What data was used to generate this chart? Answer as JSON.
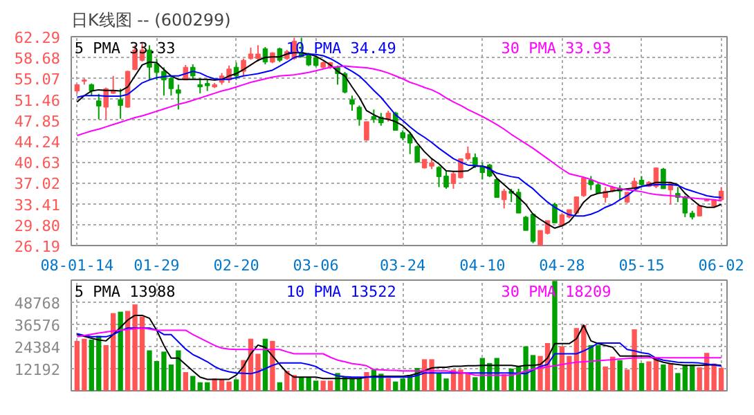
{
  "chart_data": [
    {
      "type": "candlestick",
      "title": "日K线图 -- (600299)",
      "categories": [
        "08-01-14",
        null,
        null,
        null,
        null,
        null,
        null,
        null,
        null,
        null,
        null,
        "01-29",
        null,
        null,
        null,
        null,
        null,
        null,
        null,
        null,
        null,
        null,
        "02-20",
        null,
        null,
        null,
        null,
        null,
        null,
        null,
        null,
        null,
        null,
        "03-06",
        null,
        null,
        null,
        null,
        null,
        null,
        null,
        null,
        null,
        null,
        null,
        "03-24",
        null,
        null,
        null,
        null,
        null,
        null,
        null,
        null,
        null,
        null,
        "04-10",
        null,
        null,
        null,
        null,
        null,
        null,
        null,
        null,
        null,
        null,
        "04-28",
        null,
        null,
        null,
        null,
        null,
        null,
        null,
        null,
        null,
        null,
        "05-15",
        null,
        null,
        null,
        null,
        null,
        null,
        null,
        null,
        null,
        null,
        "06-02"
      ],
      "ohlc": [
        [
          52.9,
          54.1,
          52.5,
          54.0
        ],
        [
          54.6,
          55.0,
          54.0,
          54.8
        ],
        [
          54.0,
          54.2,
          52.1,
          52.9
        ],
        [
          51.2,
          52.4,
          48.0,
          50.3
        ],
        [
          50.1,
          53.5,
          48.0,
          53.3
        ],
        [
          52.5,
          55.5,
          52.4,
          53.0
        ],
        [
          51.4,
          53.3,
          48.1,
          50.4
        ],
        [
          50.1,
          56.4,
          50.0,
          56.3
        ],
        [
          56.6,
          60.8,
          56.5,
          60.0
        ],
        [
          58.2,
          61.2,
          58.0,
          60.0
        ],
        [
          60.0,
          60.8,
          54.8,
          57.0
        ],
        [
          57.6,
          58.5,
          54.8,
          56.1
        ],
        [
          56.3,
          57.0,
          52.1,
          54.8
        ],
        [
          55.1,
          55.5,
          52.1,
          53.3
        ],
        [
          53.1,
          54.0,
          49.7,
          52.5
        ],
        [
          54.8,
          57.4,
          54.8,
          57.0
        ],
        [
          57.0,
          57.5,
          55.0,
          55.5
        ],
        [
          54.0,
          55.1,
          52.5,
          53.6
        ],
        [
          54.2,
          54.9,
          52.9,
          53.8
        ],
        [
          53.6,
          54.3,
          53.4,
          54.0
        ],
        [
          54.4,
          56.0,
          54.0,
          55.5
        ],
        [
          54.8,
          57.3,
          54.3,
          56.7
        ],
        [
          57.0,
          57.8,
          54.8,
          55.5
        ],
        [
          56.3,
          58.5,
          55.5,
          58.2
        ],
        [
          58.5,
          60.4,
          58.3,
          59.3
        ],
        [
          58.5,
          60.8,
          58.0,
          59.3
        ],
        [
          60.2,
          60.5,
          57.5,
          57.9
        ],
        [
          57.9,
          59.6,
          57.7,
          59.5
        ],
        [
          60.2,
          60.4,
          57.9,
          58.2
        ],
        [
          58.5,
          60.0,
          58.3,
          59.7
        ],
        [
          58.5,
          62.1,
          58.3,
          61.5
        ],
        [
          59.6,
          62.1,
          58.7,
          58.8
        ],
        [
          59.3,
          59.5,
          57.2,
          57.4
        ],
        [
          58.7,
          58.9,
          57.1,
          57.3
        ],
        [
          57.0,
          58.0,
          56.8,
          57.8
        ],
        [
          57.0,
          57.9,
          56.7,
          57.8
        ],
        [
          57.0,
          57.3,
          54.0,
          55.9
        ],
        [
          55.9,
          56.2,
          52.5,
          52.7
        ],
        [
          51.4,
          52.1,
          49.5,
          50.6
        ],
        [
          50.1,
          50.4,
          46.9,
          48.0
        ],
        [
          44.4,
          47.6,
          44.3,
          47.6
        ],
        [
          48.5,
          49.7,
          47.4,
          48.0
        ],
        [
          48.4,
          49.1,
          46.9,
          47.4
        ],
        [
          48.0,
          49.5,
          47.6,
          49.1
        ],
        [
          49.1,
          49.3,
          46.1,
          46.1
        ],
        [
          45.7,
          46.1,
          44.4,
          44.8
        ],
        [
          45.4,
          45.8,
          42.0,
          43.9
        ],
        [
          43.3,
          43.5,
          40.6,
          40.6
        ],
        [
          39.6,
          41.1,
          39.5,
          41.1
        ],
        [
          39.9,
          41.2,
          39.4,
          40.5
        ],
        [
          39.7,
          39.9,
          36.3,
          38.1
        ],
        [
          38.2,
          39.0,
          36.0,
          36.3
        ],
        [
          36.9,
          39.0,
          36.0,
          38.6
        ],
        [
          37.9,
          41.2,
          37.8,
          41.2
        ],
        [
          41.2,
          43.3,
          40.9,
          42.1
        ],
        [
          41.4,
          42.1,
          39.6,
          39.9
        ],
        [
          39.9,
          40.5,
          37.6,
          38.8
        ],
        [
          40.1,
          40.3,
          38.0,
          38.2
        ],
        [
          37.6,
          37.8,
          34.5,
          34.5
        ],
        [
          34.1,
          36.0,
          32.6,
          35.6
        ],
        [
          35.6,
          36.0,
          33.7,
          35.2
        ],
        [
          35.4,
          36.0,
          31.8,
          31.8
        ],
        [
          31.1,
          31.3,
          28.8,
          28.8
        ],
        [
          31.6,
          31.8,
          26.6,
          26.9
        ],
        [
          26.2,
          28.8,
          26.2,
          28.8
        ],
        [
          28.3,
          30.5,
          28.1,
          30.5
        ],
        [
          33.3,
          33.6,
          30.1,
          30.1
        ],
        [
          29.6,
          31.8,
          29.5,
          31.5
        ],
        [
          31.1,
          32.4,
          30.9,
          32.4
        ],
        [
          31.8,
          34.6,
          31.6,
          34.6
        ],
        [
          34.8,
          37.9,
          34.6,
          37.9
        ],
        [
          37.5,
          38.2,
          35.8,
          36.7
        ],
        [
          36.7,
          36.9,
          35.2,
          35.2
        ],
        [
          34.5,
          36.3,
          33.6,
          35.6
        ],
        [
          35.6,
          36.5,
          35.4,
          36.3
        ],
        [
          36.1,
          36.6,
          34.1,
          35.6
        ],
        [
          33.7,
          35.4,
          33.5,
          35.4
        ],
        [
          36.1,
          37.9,
          36.0,
          37.3
        ],
        [
          37.5,
          38.2,
          36.6,
          36.7
        ],
        [
          36.4,
          37.3,
          36.3,
          37.1
        ],
        [
          36.4,
          39.7,
          36.1,
          39.6
        ],
        [
          39.4,
          39.6,
          36.0,
          36.0
        ],
        [
          35.8,
          37.0,
          33.3,
          36.9
        ],
        [
          35.2,
          36.3,
          33.7,
          34.5
        ],
        [
          34.6,
          34.8,
          31.1,
          31.8
        ],
        [
          31.8,
          32.2,
          30.7,
          31.1
        ],
        [
          31.3,
          33.1,
          31.2,
          33.1
        ],
        [
          33.9,
          34.2,
          33.8,
          34.1
        ],
        [
          33.0,
          34.2,
          32.9,
          34.1
        ],
        [
          34.1,
          36.3,
          34.0,
          35.6
        ]
      ],
      "colors": [
        "#ff5555",
        "#ff5555",
        "#00a000",
        "#00a000",
        "#ff5555",
        "#ff5555",
        "#00a000",
        "#ff5555",
        "#ff5555",
        "#ff5555",
        "#00a000",
        "#00a000",
        "#00a000",
        "#00a000",
        "#00a000",
        "#ff5555",
        "#00a000",
        "#00a000",
        "#00a000",
        "#ff5555",
        "#ff5555",
        "#ff5555",
        "#00a000",
        "#ff5555",
        "#ff5555",
        "#ff5555",
        "#00a000",
        "#ff5555",
        "#00a000",
        "#ff5555",
        "#ff5555",
        "#00a000",
        "#00a000",
        "#00a000",
        "#ff5555",
        "#ff5555",
        "#00a000",
        "#00a000",
        "#00a000",
        "#00a000",
        "#ff5555",
        "#00a000",
        "#00a000",
        "#ff5555",
        "#00a000",
        "#00a000",
        "#00a000",
        "#00a000",
        "#ff5555",
        "#ff5555",
        "#00a000",
        "#00a000",
        "#ff5555",
        "#ff5555",
        "#ff5555",
        "#00a000",
        "#00a000",
        "#00a000",
        "#00a000",
        "#ff5555",
        "#00a000",
        "#00a000",
        "#00a000",
        "#00a000",
        "#ff5555",
        "#ff5555",
        "#00a000",
        "#ff5555",
        "#ff5555",
        "#ff5555",
        "#ff5555",
        "#00a000",
        "#00a000",
        "#ff5555",
        "#ff5555",
        "#00a000",
        "#ff5555",
        "#ff5555",
        "#00a000",
        "#ff5555",
        "#ff5555",
        "#00a000",
        "#ff5555",
        "#00a000",
        "#00a000",
        "#00a000",
        "#ff5555",
        "#ff5555",
        "#ff5555",
        "#ff5555"
      ],
      "series": [
        {
          "type": "line",
          "name": "5 PMA 33.33",
          "color": "#000000",
          "values": [
            51.0,
            52.1,
            52.9,
            53.1,
            53.0,
            53.0,
            52.9,
            53.6,
            55.5,
            57.4,
            57.9,
            57.8,
            56.6,
            55.5,
            54.9,
            54.9,
            54.9,
            54.9,
            54.9,
            54.8,
            54.9,
            55.5,
            55.9,
            56.6,
            57.4,
            58.2,
            58.7,
            58.8,
            58.8,
            59.3,
            59.5,
            59.5,
            59.3,
            58.9,
            58.2,
            57.4,
            56.3,
            55.5,
            53.6,
            51.8,
            49.5,
            48.8,
            48.2,
            48.0,
            47.6,
            46.9,
            45.7,
            43.9,
            42.4,
            41.2,
            40.3,
            39.1,
            39.0,
            39.0,
            39.1,
            39.9,
            39.9,
            39.6,
            37.8,
            36.7,
            35.6,
            34.5,
            33.3,
            31.6,
            30.7,
            29.9,
            29.2,
            29.6,
            30.3,
            31.8,
            33.7,
            34.8,
            35.2,
            35.4,
            35.6,
            35.8,
            36.0,
            36.1,
            36.4,
            36.7,
            37.1,
            37.1,
            37.1,
            36.7,
            35.2,
            34.1,
            33.1,
            32.8,
            32.8,
            33.3
          ]
        },
        {
          "type": "line",
          "name": "10 PMA 34.49",
          "color": "#0000ff",
          "values": [
            51.8,
            52.1,
            52.1,
            52.1,
            52.0,
            52.0,
            52.0,
            52.3,
            53.3,
            54.3,
            54.8,
            55.2,
            55.4,
            55.5,
            55.5,
            55.9,
            56.3,
            56.0,
            55.4,
            55.0,
            54.9,
            54.9,
            55.2,
            55.5,
            55.7,
            55.9,
            56.2,
            56.5,
            57.2,
            57.9,
            58.7,
            59.0,
            59.3,
            59.2,
            59.0,
            58.5,
            57.8,
            57.0,
            56.3,
            55.5,
            54.3,
            53.0,
            51.8,
            50.3,
            48.8,
            47.8,
            46.7,
            45.7,
            44.9,
            44.0,
            43.0,
            42.1,
            41.2,
            40.6,
            40.1,
            40.0,
            39.9,
            39.4,
            38.7,
            38.4,
            38.1,
            37.9,
            36.9,
            36.0,
            34.8,
            33.7,
            32.8,
            32.1,
            31.5,
            31.3,
            31.3,
            31.6,
            32.1,
            32.8,
            33.3,
            34.1,
            34.8,
            35.8,
            36.4,
            36.6,
            36.7,
            36.7,
            36.7,
            36.6,
            36.0,
            35.6,
            35.2,
            34.8,
            34.6,
            34.5
          ]
        },
        {
          "type": "line",
          "name": "30 PMA 33.93",
          "color": "#ff00ff",
          "values": [
            45.2,
            45.6,
            46.0,
            46.3,
            46.7,
            47.1,
            47.5,
            47.9,
            48.3,
            48.6,
            49.0,
            49.4,
            49.8,
            50.2,
            50.6,
            50.9,
            51.3,
            51.7,
            52.1,
            52.5,
            52.9,
            53.2,
            53.6,
            54.0,
            54.4,
            54.7,
            55.0,
            55.3,
            55.5,
            55.6,
            55.7,
            55.9,
            56.1,
            56.4,
            56.7,
            57.0,
            57.1,
            57.2,
            57.1,
            57.0,
            56.9,
            56.7,
            56.4,
            56.0,
            55.5,
            55.0,
            54.4,
            54.0,
            53.5,
            53.1,
            52.5,
            51.7,
            51.0,
            50.4,
            49.7,
            49.1,
            48.5,
            47.8,
            47.1,
            46.3,
            45.4,
            44.6,
            43.8,
            43.0,
            42.1,
            41.2,
            40.3,
            39.4,
            38.6,
            38.3,
            38.0,
            37.6,
            37.1,
            36.7,
            36.3,
            36.0,
            35.8,
            35.7,
            35.5,
            35.2,
            35.0,
            34.9,
            34.8,
            34.7,
            34.5,
            34.4,
            34.3,
            34.2,
            34.1,
            33.9
          ]
        }
      ],
      "ylim": [
        26.19,
        62.29
      ],
      "yticks": [
        26.19,
        {
          "value": 29.8,
          "label": "29.80"
        },
        33.41,
        37.02,
        40.63,
        44.24,
        47.85,
        51.46,
        55.07,
        58.68,
        62.29
      ],
      "grid": true
    },
    {
      "type": "bar",
      "tick_labels": "y",
      "categories": [
        null,
        null,
        null,
        null,
        null,
        null,
        null,
        null,
        null,
        null,
        null,
        null,
        null,
        null,
        null,
        null,
        null,
        null,
        null,
        null,
        null,
        null,
        null,
        null,
        null,
        null,
        null,
        null,
        null,
        null,
        null,
        null,
        null,
        null,
        null,
        null,
        null,
        null,
        null,
        null,
        null,
        null,
        null,
        null,
        null,
        null,
        null,
        null,
        null,
        null,
        null,
        null,
        null,
        null,
        null,
        null,
        null,
        null,
        null,
        null,
        null,
        null,
        null,
        null,
        null,
        null,
        null,
        null,
        null,
        null,
        null,
        null,
        null,
        null,
        null,
        null,
        null,
        null,
        null,
        null,
        null,
        null,
        null,
        null,
        null,
        null,
        null,
        null,
        null,
        null
      ],
      "series": [
        {
          "type": "bar",
          "colors": [
            "#ff5555",
            "#ff5555",
            "#00a000",
            "#00a000",
            "#ff5555",
            "#ff5555",
            "#00a000",
            "#ff5555",
            "#ff5555",
            "#ff5555",
            "#00a000",
            "#00a000",
            "#00a000",
            "#00a000",
            "#00a000",
            "#ff5555",
            "#00a000",
            "#00a000",
            "#00a000",
            "#ff5555",
            "#ff5555",
            "#ff5555",
            "#00a000",
            "#ff5555",
            "#ff5555",
            "#ff5555",
            "#00a000",
            "#ff5555",
            "#00a000",
            "#ff5555",
            "#ff5555",
            "#00a000",
            "#00a000",
            "#00a000",
            "#ff5555",
            "#ff5555",
            "#00a000",
            "#00a000",
            "#00a000",
            "#00a000",
            "#ff5555",
            "#00a000",
            "#00a000",
            "#ff5555",
            "#00a000",
            "#00a000",
            "#00a000",
            "#00a000",
            "#ff5555",
            "#ff5555",
            "#00a000",
            "#00a000",
            "#ff5555",
            "#ff5555",
            "#ff5555",
            "#00a000",
            "#00a000",
            "#00a000",
            "#00a000",
            "#ff5555",
            "#00a000",
            "#00a000",
            "#00a000",
            "#00a000",
            "#ff5555",
            "#ff5555",
            "#00a000",
            "#ff5555",
            "#ff5555",
            "#ff5555",
            "#ff5555",
            "#00a000",
            "#00a000",
            "#ff5555",
            "#ff5555",
            "#00a000",
            "#ff5555",
            "#ff5555",
            "#00a000",
            "#ff5555",
            "#ff5555",
            "#00a000",
            "#ff5555",
            "#00a000",
            "#00a000",
            "#00a000",
            "#ff5555",
            "#ff5555",
            "#ff5555",
            "#ff5555"
          ],
          "values": [
            27500,
            28700,
            28200,
            30300,
            25200,
            42800,
            43600,
            44000,
            47600,
            41000,
            22300,
            16400,
            21600,
            14500,
            22300,
            10300,
            8200,
            4700,
            4700,
            6800,
            6300,
            5100,
            6300,
            16900,
            28700,
            20400,
            28700,
            27500,
            4700,
            11000,
            8700,
            7500,
            7500,
            5600,
            5600,
            5600,
            9800,
            7900,
            6800,
            6800,
            10300,
            11700,
            9400,
            7000,
            5100,
            6800,
            8700,
            12600,
            17400,
            17400,
            9800,
            6800,
            11700,
            11700,
            9800,
            7500,
            18100,
            15300,
            18100,
            9100,
            12200,
            13400,
            24500,
            19700,
            19200,
            26300,
            60500,
            24500,
            19200,
            34600,
            36200,
            25200,
            25200,
            13400,
            18800,
            16900,
            11700,
            33900,
            15300,
            16200,
            18600,
            14500,
            15000,
            9800,
            14500,
            14500,
            12900,
            20900,
            15000,
            12700
          ]
        },
        {
          "type": "line",
          "name": "5 PMA 13988",
          "color": "#000000",
          "values": [
            31000,
            30000,
            29000,
            28000,
            27500,
            31000,
            35000,
            39000,
            41600,
            41600,
            40000,
            33400,
            25000,
            18000,
            18000,
            14500,
            11000,
            7500,
            6300,
            6300,
            6300,
            6300,
            8600,
            13400,
            20400,
            25200,
            24000,
            19200,
            14500,
            10000,
            7500,
            7500,
            7500,
            7500,
            6800,
            6800,
            6800,
            6800,
            6800,
            6800,
            7500,
            8000,
            8000,
            8000,
            8000,
            8000,
            8500,
            9500,
            11000,
            12600,
            13000,
            13000,
            13500,
            13500,
            13800,
            13800,
            14000,
            14000,
            14000,
            14000,
            14000,
            13400,
            14000,
            14000,
            14500,
            18000,
            26000,
            26000,
            26000,
            28700,
            36200,
            27500,
            26000,
            25000,
            24000,
            19200,
            19200,
            19200,
            19200,
            19200,
            17000,
            15700,
            15000,
            14500,
            14000,
            14000,
            14000,
            14200,
            14400,
            14000
          ]
        },
        {
          "type": "line",
          "name": "10 PMA 13522",
          "color": "#0000ff",
          "values": [
            31500,
            30500,
            29800,
            29800,
            29800,
            31000,
            33000,
            34600,
            34600,
            34600,
            34600,
            33400,
            31000,
            31000,
            27000,
            23000,
            20000,
            18100,
            16000,
            13400,
            11500,
            10500,
            9800,
            9600,
            9400,
            10500,
            12200,
            14000,
            15300,
            15300,
            15300,
            15300,
            14500,
            13400,
            11000,
            9500,
            8200,
            7800,
            7500,
            7500,
            7500,
            7500,
            7500,
            7500,
            7500,
            7500,
            7500,
            8500,
            9800,
            9800,
            9800,
            9800,
            9800,
            9800,
            9800,
            9800,
            9800,
            9800,
            9800,
            9800,
            9800,
            9600,
            9400,
            11500,
            13400,
            14500,
            20400,
            20400,
            20400,
            20400,
            22000,
            24000,
            26300,
            26300,
            26300,
            26300,
            22800,
            22000,
            21000,
            20400,
            18000,
            16900,
            16300,
            15700,
            15500,
            15500,
            15300,
            14800,
            14200,
            13600
          ]
        },
        {
          "type": "line",
          "name": "30 PMA 18209",
          "color": "#ff00ff",
          "values": [
            29800,
            30500,
            31200,
            31800,
            32400,
            33000,
            33400,
            33800,
            34200,
            34600,
            34000,
            33400,
            33400,
            33400,
            33400,
            33400,
            31000,
            29000,
            27000,
            25000,
            23500,
            23000,
            22800,
            22800,
            22800,
            22800,
            22800,
            22800,
            22800,
            21500,
            20400,
            20400,
            20400,
            20400,
            20400,
            18500,
            16900,
            16000,
            15000,
            14500,
            13800,
            11700,
            11500,
            11300,
            11200,
            11000,
            11000,
            11000,
            11000,
            11000,
            11000,
            11000,
            10500,
            10000,
            9500,
            8600,
            8600,
            8600,
            8600,
            8600,
            8600,
            9500,
            11000,
            11800,
            12600,
            13200,
            13800,
            14500,
            15200,
            15700,
            16000,
            16300,
            16600,
            16900,
            17200,
            17500,
            17800,
            18100,
            18100,
            18200,
            18200,
            18200,
            18200,
            18200,
            18200,
            18200,
            18200,
            18200,
            18200,
            18200
          ]
        }
      ],
      "ylim": [
        0,
        61000
      ],
      "yticks": [
        12192,
        24384,
        36576,
        48768
      ],
      "grid": true
    }
  ]
}
